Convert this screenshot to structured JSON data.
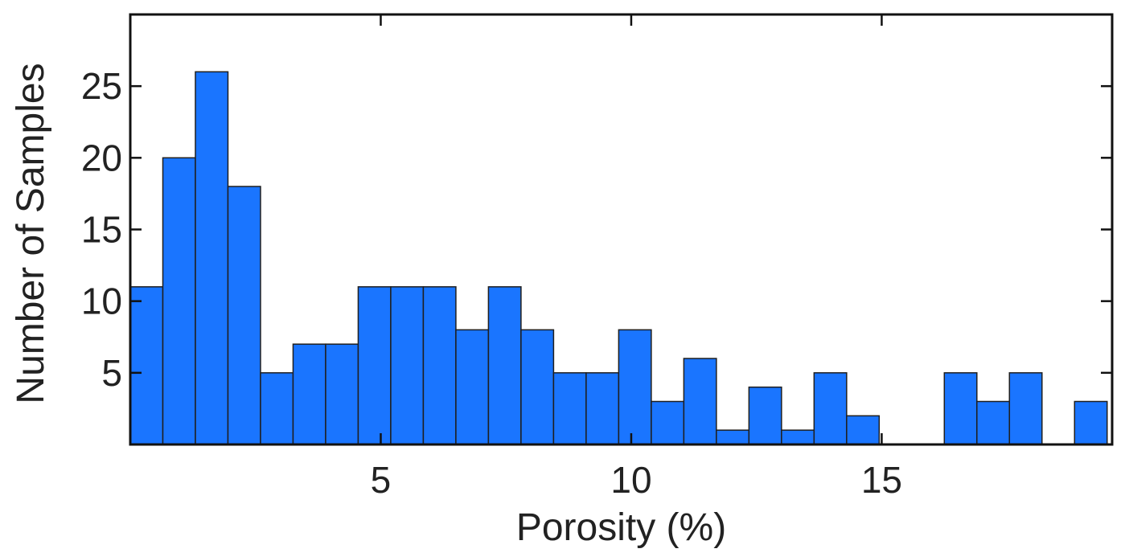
{
  "chart_data": {
    "type": "bar",
    "title": "",
    "xlabel": "Porosity (%)",
    "ylabel": "Number of Samples",
    "bin_width": 0.65,
    "x_start": 0,
    "counts": [
      11,
      20,
      26,
      18,
      5,
      7,
      7,
      11,
      11,
      11,
      8,
      11,
      8,
      5,
      5,
      8,
      3,
      6,
      1,
      4,
      1,
      5,
      2,
      0,
      0,
      5,
      3,
      5,
      0,
      3
    ],
    "xlim": [
      0,
      19.6
    ],
    "ylim": [
      0,
      30
    ],
    "xticks": [
      5,
      10,
      15
    ],
    "yticks": [
      5,
      10,
      15,
      20,
      25
    ],
    "grid": false,
    "bar_color": "#1a75ff",
    "edge_color": "#1f1f1f"
  }
}
